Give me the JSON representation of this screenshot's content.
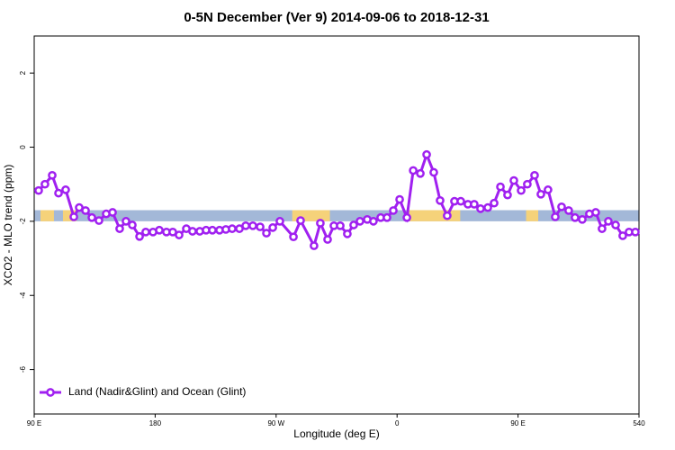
{
  "chart_data": {
    "type": "line",
    "title": "0-5N December (Ver 9)   2014-09-06 to 2018-12-31",
    "x_label": "Longitude (deg E)",
    "y_label": "XCO2 - MLO trend (ppm)",
    "xlim": [
      90,
      540
    ],
    "xticks": [
      {
        "value": 90,
        "label": "90 E"
      },
      180,
      {
        "value": 270,
        "label": "90 W"
      },
      {
        "value": 360,
        "label": "0"
      },
      {
        "value": 450,
        "label": "90 E"
      },
      540
    ],
    "ylim": [
      -7.2,
      3
    ],
    "yticks": [
      -6,
      -4,
      -2,
      0,
      2
    ],
    "legend": "bottom left",
    "band": {
      "ylim": [
        -1.7,
        -2.0
      ],
      "ocean_color": "#a3b8d8",
      "land_color": "#f5d27a",
      "land": [
        [
          94.7,
          104.7
        ],
        [
          111.4,
          121.5
        ],
        [
          282,
          310
        ],
        [
          369,
          407
        ],
        [
          456,
          465
        ]
      ]
    },
    "series": [
      {
        "name": "Land (Nadir&Glint) and Ocean (Glint)",
        "color": "#a020f0",
        "x": [
          93.3,
          98.0,
          103.4,
          108.1,
          113.4,
          119.5,
          123.5,
          128.2,
          132.9,
          138.2,
          143.6,
          148.3,
          153.6,
          158.3,
          163.0,
          168.4,
          173.0,
          178.4,
          183.1,
          188.4,
          193.1,
          197.8,
          203.2,
          207.8,
          213.2,
          217.9,
          222.6,
          227.9,
          232.6,
          237.3,
          242.7,
          247.4,
          252.7,
          258.1,
          262.8,
          267.5,
          272.8,
          282.9,
          288.2,
          298.2,
          302.9,
          308.3,
          313.0,
          317.7,
          323.0,
          327.7,
          332.4,
          337.8,
          342.4,
          347.8,
          352.5,
          357.2,
          361.9,
          367.3,
          372.0,
          377.3,
          382.0,
          387.3,
          392.0,
          397.3,
          402.7,
          407.4,
          412.7,
          417.4,
          422.1,
          427.5,
          432.2,
          436.9,
          442.2,
          446.9,
          452.3,
          456.9,
          462.3,
          467.0,
          472.3,
          477.7,
          482.4,
          487.7,
          492.4,
          497.8,
          503.1,
          507.8,
          512.5,
          517.2,
          522.6,
          527.9,
          532.6,
          537.3
        ],
        "values": [
          -1.17,
          -1.0,
          -0.76,
          -1.24,
          -1.15,
          -1.88,
          -1.63,
          -1.71,
          -1.9,
          -1.98,
          -1.8,
          -1.76,
          -2.2,
          -2.0,
          -2.1,
          -2.41,
          -2.29,
          -2.29,
          -2.24,
          -2.29,
          -2.29,
          -2.37,
          -2.2,
          -2.27,
          -2.27,
          -2.24,
          -2.24,
          -2.24,
          -2.22,
          -2.2,
          -2.2,
          -2.12,
          -2.12,
          -2.15,
          -2.32,
          -2.17,
          -2.0,
          -2.42,
          -1.98,
          -2.66,
          -2.05,
          -2.49,
          -2.12,
          -2.12,
          -2.34,
          -2.1,
          -2.0,
          -1.95,
          -2.0,
          -1.9,
          -1.9,
          -1.71,
          -1.41,
          -1.9,
          -0.63,
          -0.71,
          -0.2,
          -0.68,
          -1.44,
          -1.85,
          -1.46,
          -1.46,
          -1.54,
          -1.54,
          -1.66,
          -1.63,
          -1.51,
          -1.07,
          -1.29,
          -0.9,
          -1.17,
          -1.0,
          -0.76,
          -1.27,
          -1.15,
          -1.88,
          -1.61,
          -1.71,
          -1.9,
          -1.95,
          -1.8,
          -1.76,
          -2.2,
          -2.0,
          -2.1,
          -2.39,
          -2.29,
          -2.29
        ]
      }
    ]
  }
}
